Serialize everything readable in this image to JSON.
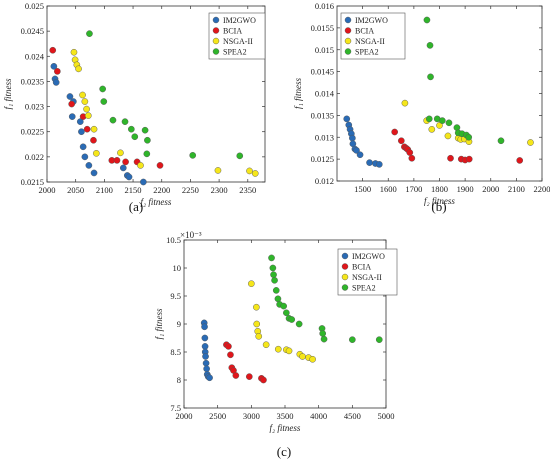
{
  "colors": {
    "IM2GWO": "#2a6bb5",
    "BCIA": "#e0161b",
    "NSGA-II": "#f5e61a",
    "SPEA2": "#2fb52a"
  },
  "chart_data": [
    {
      "type": "scatter",
      "caption": "(a)",
      "xlabel": "f₂ fitness",
      "ylabel": "f₁ fitness",
      "xlim": [
        2000,
        2380
      ],
      "ylim": [
        0.0215,
        0.025
      ],
      "xticks": [
        2000,
        2050,
        2100,
        2150,
        2200,
        2250,
        2300,
        2350
      ],
      "yticks": [
        0.0215,
        0.022,
        0.0225,
        0.023,
        0.0235,
        0.024,
        0.0245,
        0.025
      ],
      "ytick_labels": [
        "0.0215",
        "0.022",
        "0.0225",
        "0.023",
        "0.0235",
        "0.024",
        "0.0245",
        "0.025"
      ],
      "legend": "top-right",
      "series": [
        {
          "name": "IM2GWO",
          "points": [
            [
              2012,
              0.0238
            ],
            [
              2014,
              0.02355
            ],
            [
              2016,
              0.02348
            ],
            [
              2040,
              0.0232
            ],
            [
              2044,
              0.0228
            ],
            [
              2046,
              0.0231
            ],
            [
              2058,
              0.0227
            ],
            [
              2060,
              0.0225
            ],
            [
              2063,
              0.0222
            ],
            [
              2066,
              0.022
            ],
            [
              2073,
              0.02183
            ],
            [
              2082,
              0.02168
            ],
            [
              2133,
              0.02178
            ],
            [
              2140,
              0.02163
            ],
            [
              2143,
              0.0216
            ],
            [
              2168,
              0.0215
            ]
          ]
        },
        {
          "name": "BCIA",
          "points": [
            [
              2010,
              0.02412
            ],
            [
              2018,
              0.0237
            ],
            [
              2043,
              0.02305
            ],
            [
              2063,
              0.0228
            ],
            [
              2070,
              0.02255
            ],
            [
              2081,
              0.02233
            ],
            [
              2113,
              0.02193
            ],
            [
              2122,
              0.02193
            ],
            [
              2137,
              0.0219
            ],
            [
              2157,
              0.0219
            ],
            [
              2197,
              0.02183
            ]
          ]
        },
        {
          "name": "NSGA-II",
          "points": [
            [
              2047,
              0.02408
            ],
            [
              2049,
              0.02393
            ],
            [
              2052,
              0.02383
            ],
            [
              2055,
              0.02375
            ],
            [
              2062,
              0.02323
            ],
            [
              2066,
              0.0231
            ],
            [
              2069,
              0.02295
            ],
            [
              2072,
              0.02282
            ],
            [
              2082,
              0.02255
            ],
            [
              2086,
              0.02207
            ],
            [
              2128,
              0.02208
            ],
            [
              2163,
              0.02183
            ],
            [
              2298,
              0.02173
            ],
            [
              2353,
              0.02172
            ],
            [
              2363,
              0.02167
            ]
          ]
        },
        {
          "name": "SPEA2",
          "points": [
            [
              2074,
              0.02445
            ],
            [
              2097,
              0.02335
            ],
            [
              2099,
              0.0231
            ],
            [
              2115,
              0.02273
            ],
            [
              2136,
              0.0227
            ],
            [
              2147,
              0.02255
            ],
            [
              2153,
              0.0224
            ],
            [
              2171,
              0.02253
            ],
            [
              2175,
              0.02233
            ],
            [
              2174,
              0.02206
            ],
            [
              2254,
              0.02203
            ],
            [
              2336,
              0.02202
            ]
          ]
        }
      ]
    },
    {
      "type": "scatter",
      "caption": "(b)",
      "xlabel": "f₂ fitness",
      "ylabel": "f₁ fitness",
      "xlim": [
        1400,
        2200
      ],
      "ylim": [
        0.012,
        0.016
      ],
      "xticks": [
        1500,
        1600,
        1700,
        1800,
        1900,
        2000,
        2100,
        2200
      ],
      "yticks": [
        0.012,
        0.0125,
        0.013,
        0.0135,
        0.014,
        0.0145,
        0.015,
        0.0155,
        0.016
      ],
      "ytick_labels": [
        "0.012",
        "0.0125",
        "0.013",
        "0.0135",
        "0.014",
        "0.0145",
        "0.015",
        "0.0155",
        "0.016"
      ],
      "legend": "top-left",
      "series": [
        {
          "name": "IM2GWO",
          "points": [
            [
              1438,
              0.01342
            ],
            [
              1446,
              0.01328
            ],
            [
              1451,
              0.01318
            ],
            [
              1456,
              0.01308
            ],
            [
              1460,
              0.01298
            ],
            [
              1462,
              0.01285
            ],
            [
              1470,
              0.01273
            ],
            [
              1476,
              0.0127
            ],
            [
              1490,
              0.0126
            ],
            [
              1527,
              0.01242
            ],
            [
              1550,
              0.0124
            ],
            [
              1565,
              0.01238
            ]
          ]
        },
        {
          "name": "BCIA",
          "points": [
            [
              1625,
              0.01312
            ],
            [
              1651,
              0.01292
            ],
            [
              1663,
              0.01278
            ],
            [
              1670,
              0.01275
            ],
            [
              1676,
              0.01272
            ],
            [
              1684,
              0.01265
            ],
            [
              1692,
              0.01252
            ],
            [
              1843,
              0.01252
            ],
            [
              1885,
              0.0125
            ],
            [
              1900,
              0.01248
            ],
            [
              1916,
              0.0125
            ],
            [
              2113,
              0.01247
            ]
          ]
        },
        {
          "name": "NSGA-II",
          "points": [
            [
              1665,
              0.01378
            ],
            [
              1750,
              0.01338
            ],
            [
              1770,
              0.01318
            ],
            [
              1800,
              0.01327
            ],
            [
              1833,
              0.01303
            ],
            [
              1873,
              0.01298
            ],
            [
              1883,
              0.01295
            ],
            [
              1897,
              0.01296
            ],
            [
              1915,
              0.0129
            ],
            [
              2155,
              0.01288
            ]
          ]
        },
        {
          "name": "SPEA2",
          "points": [
            [
              1751,
              0.01568
            ],
            [
              1763,
              0.0151
            ],
            [
              1765,
              0.01438
            ],
            [
              1760,
              0.01342
            ],
            [
              1791,
              0.01342
            ],
            [
              1811,
              0.01338
            ],
            [
              1837,
              0.01333
            ],
            [
              1868,
              0.01322
            ],
            [
              1873,
              0.0131
            ],
            [
              1888,
              0.01308
            ],
            [
              1905,
              0.01305
            ],
            [
              1914,
              0.013
            ],
            [
              2040,
              0.01292
            ]
          ]
        }
      ]
    },
    {
      "type": "scatter",
      "caption": "(c)",
      "xlabel": "f₂ fitness",
      "ylabel": "f₁ fitness",
      "multiplier": "×10⁻³",
      "xlim": [
        2000,
        5000
      ],
      "ylim": [
        7.5,
        10.5
      ],
      "xticks": [
        2000,
        2500,
        3000,
        3500,
        4000,
        4500,
        5000
      ],
      "yticks": [
        7.5,
        8,
        8.5,
        9,
        9.5,
        10,
        10.5
      ],
      "ytick_labels": [
        "7.5",
        "8",
        "8.5",
        "9",
        "9.5",
        "10",
        "10.5"
      ],
      "legend": "top-right",
      "series": [
        {
          "name": "IM2GWO",
          "points": [
            [
              2300,
              9.02
            ],
            [
              2305,
              8.95
            ],
            [
              2310,
              8.75
            ],
            [
              2313,
              8.6
            ],
            [
              2315,
              8.5
            ],
            [
              2320,
              8.42
            ],
            [
              2328,
              8.3
            ],
            [
              2336,
              8.2
            ],
            [
              2345,
              8.1
            ],
            [
              2360,
              8.06
            ],
            [
              2380,
              8.04
            ]
          ]
        },
        {
          "name": "BCIA",
          "points": [
            [
              2630,
              8.63
            ],
            [
              2660,
              8.6
            ],
            [
              2690,
              8.45
            ],
            [
              2710,
              8.22
            ],
            [
              2735,
              8.17
            ],
            [
              2770,
              8.08
            ],
            [
              2970,
              8.06
            ],
            [
              3150,
              8.03
            ],
            [
              3180,
              8.0
            ]
          ]
        },
        {
          "name": "NSGA-II",
          "points": [
            [
              3000,
              9.72
            ],
            [
              3075,
              9.3
            ],
            [
              3080,
              9.0
            ],
            [
              3095,
              8.87
            ],
            [
              3110,
              8.78
            ],
            [
              3220,
              8.63
            ],
            [
              3400,
              8.55
            ],
            [
              3520,
              8.54
            ],
            [
              3560,
              8.52
            ],
            [
              3720,
              8.46
            ],
            [
              3760,
              8.42
            ],
            [
              3850,
              8.4
            ],
            [
              3910,
              8.37
            ]
          ]
        },
        {
          "name": "SPEA2",
          "points": [
            [
              3300,
              10.18
            ],
            [
              3320,
              10.0
            ],
            [
              3330,
              9.88
            ],
            [
              3345,
              9.78
            ],
            [
              3370,
              9.6
            ],
            [
              3395,
              9.45
            ],
            [
              3420,
              9.35
            ],
            [
              3480,
              9.32
            ],
            [
              3520,
              9.2
            ],
            [
              3560,
              9.1
            ],
            [
              3600,
              9.08
            ],
            [
              3710,
              9.0
            ],
            [
              4050,
              8.92
            ],
            [
              4060,
              8.83
            ],
            [
              4080,
              8.73
            ],
            [
              4500,
              8.72
            ],
            [
              4900,
              8.72
            ]
          ]
        }
      ]
    }
  ]
}
